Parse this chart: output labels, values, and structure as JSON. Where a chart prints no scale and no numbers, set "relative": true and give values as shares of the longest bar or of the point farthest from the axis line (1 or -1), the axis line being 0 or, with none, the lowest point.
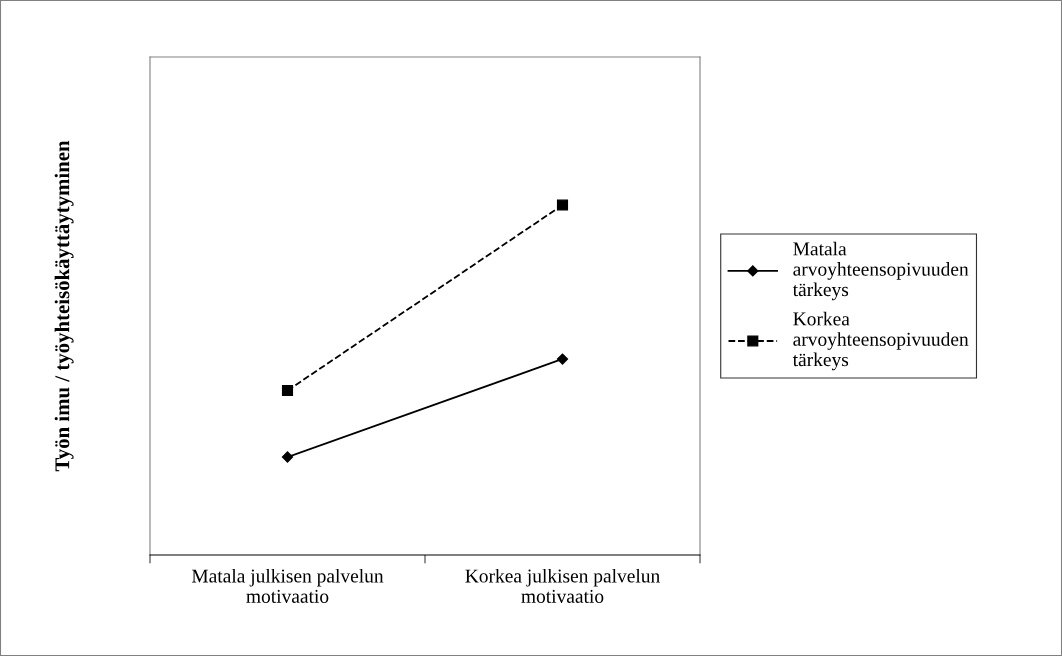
{
  "chart_data": {
    "type": "line",
    "relative": true,
    "ylabel": "Työn imu / työyhteisökäyttäytyminen",
    "categories": [
      "Matala julkisen palvelun motivaatio",
      "Korkea julkisen palvelun motivaatio"
    ],
    "series": [
      {
        "name": "Matala arvoyhteensopivuuden tärkeys",
        "color": "#000000",
        "values": [
          0.28,
          0.56
        ],
        "marker": "diamond",
        "line_style": "solid"
      },
      {
        "name": "Korkea arvoyhteensopivuuden tärkeys",
        "color": "#000000",
        "values": [
          0.47,
          1.0
        ],
        "marker": "square",
        "line_style": "dashed"
      }
    ],
    "legend": "right",
    "grid": false
  }
}
